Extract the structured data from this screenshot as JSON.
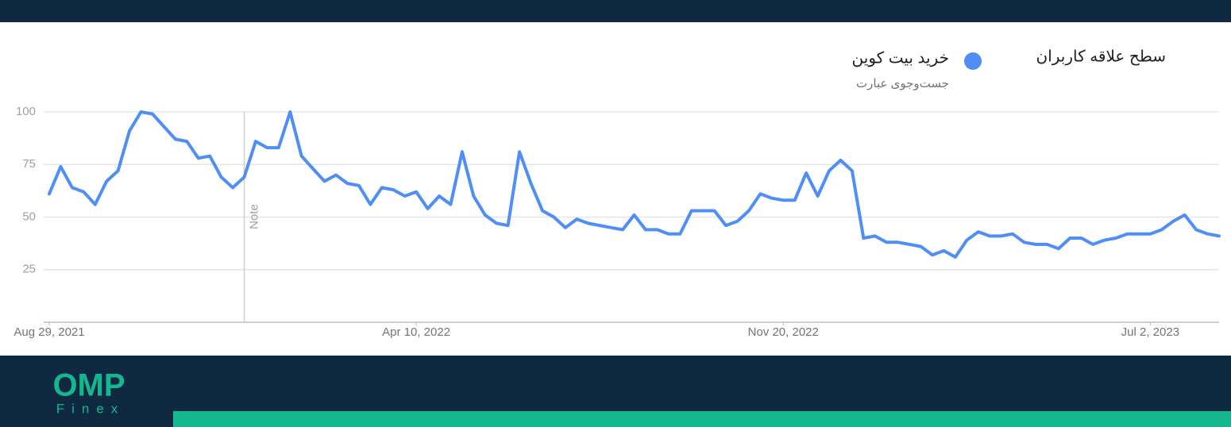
{
  "chart_data": {
    "type": "line",
    "title": "سطح علاقه کاربران",
    "subtitle": "جست‌وجوی عبارت",
    "x": [
      "2021-08-29",
      "2021-09-05",
      "2021-09-12",
      "2021-09-19",
      "2021-09-26",
      "2021-10-03",
      "2021-10-10",
      "2021-10-17",
      "2021-10-24",
      "2021-10-31",
      "2021-11-07",
      "2021-11-14",
      "2021-11-21",
      "2021-11-28",
      "2021-12-05",
      "2021-12-12",
      "2021-12-19",
      "2021-12-26",
      "2022-01-02",
      "2022-01-09",
      "2022-01-16",
      "2022-01-23",
      "2022-01-30",
      "2022-02-06",
      "2022-02-13",
      "2022-02-20",
      "2022-02-27",
      "2022-03-06",
      "2022-03-13",
      "2022-03-20",
      "2022-03-27",
      "2022-04-03",
      "2022-04-10",
      "2022-04-17",
      "2022-04-24",
      "2022-05-01",
      "2022-05-08",
      "2022-05-15",
      "2022-05-22",
      "2022-05-29",
      "2022-06-05",
      "2022-06-12",
      "2022-06-19",
      "2022-06-26",
      "2022-07-03",
      "2022-07-10",
      "2022-07-17",
      "2022-07-24",
      "2022-07-31",
      "2022-08-07",
      "2022-08-14",
      "2022-08-21",
      "2022-08-28",
      "2022-09-04",
      "2022-09-11",
      "2022-09-18",
      "2022-09-25",
      "2022-10-02",
      "2022-10-09",
      "2022-10-16",
      "2022-10-23",
      "2022-10-30",
      "2022-11-06",
      "2022-11-13",
      "2022-11-20",
      "2022-11-27",
      "2022-12-04",
      "2022-12-11",
      "2022-12-18",
      "2022-12-25",
      "2023-01-01",
      "2023-01-08",
      "2023-01-15",
      "2023-01-22",
      "2023-01-29",
      "2023-02-05",
      "2023-02-12",
      "2023-02-19",
      "2023-02-26",
      "2023-03-05",
      "2023-03-12",
      "2023-03-19",
      "2023-03-26",
      "2023-04-02",
      "2023-04-09",
      "2023-04-16",
      "2023-04-23",
      "2023-04-30",
      "2023-05-07",
      "2023-05-14",
      "2023-05-21",
      "2023-05-28",
      "2023-06-04",
      "2023-06-11",
      "2023-06-18",
      "2023-06-25",
      "2023-07-02",
      "2023-07-09",
      "2023-07-16",
      "2023-07-23",
      "2023-07-30",
      "2023-08-06",
      "2023-08-13"
    ],
    "series": [
      {
        "name": "خرید بیت کوین",
        "color": "#4f8ef5",
        "values": [
          61,
          74,
          64,
          62,
          56,
          67,
          72,
          91,
          100,
          99,
          93,
          87,
          86,
          78,
          79,
          69,
          64,
          69,
          86,
          83,
          83,
          100,
          79,
          73,
          67,
          70,
          66,
          65,
          56,
          64,
          63,
          60,
          62,
          54,
          60,
          56,
          81,
          60,
          51,
          47,
          46,
          81,
          66,
          53,
          50,
          45,
          49,
          47,
          46,
          45,
          44,
          51,
          44,
          44,
          42,
          42,
          53,
          53,
          53,
          46,
          48,
          53,
          61,
          59,
          58,
          58,
          71,
          60,
          72,
          77,
          72,
          40,
          41,
          38,
          38,
          37,
          36,
          32,
          34,
          31,
          39,
          43,
          41,
          41,
          42,
          38,
          37,
          37,
          35,
          40,
          40,
          37,
          39,
          40,
          42,
          42,
          42,
          44,
          48,
          51,
          44,
          42,
          41
        ]
      }
    ],
    "xlim": [
      "2021-08-29",
      "2023-08-13"
    ],
    "xticks": [
      {
        "value": "2021-08-29",
        "label": "Aug 29, 2021"
      },
      {
        "value": "2022-04-10",
        "label": "Apr 10, 2022"
      },
      {
        "value": "2022-11-20",
        "label": "Nov 20, 2022"
      },
      {
        "value": "2023-07-02",
        "label": "Jul 2, 2023"
      }
    ],
    "ylim": [
      0,
      100
    ],
    "yticks": [
      25,
      50,
      75,
      100
    ],
    "grid": true,
    "annotations": [
      {
        "x": "2021-12-26",
        "label": "Note"
      }
    ]
  },
  "brand": {
    "logo": "OMP",
    "tagline": "Finex"
  }
}
